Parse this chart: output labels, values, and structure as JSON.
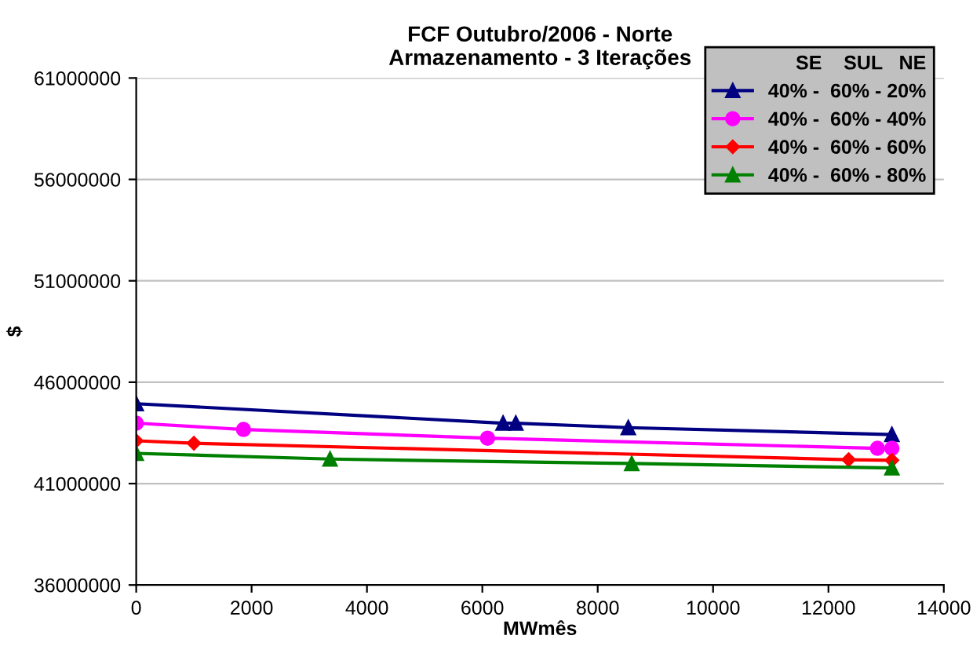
{
  "chart_data": {
    "type": "line",
    "title": "FCF Outubro/2006 - Norte\nArmazenamento - 3 Iterações",
    "xlabel": "MWmês",
    "ylabel": "$",
    "xlim": [
      0,
      14000
    ],
    "xticks": [
      0,
      2000,
      4000,
      6000,
      8000,
      10000,
      12000,
      14000
    ],
    "ylim": [
      36000000,
      61000000
    ],
    "yticks": [
      36000000,
      41000000,
      46000000,
      51000000,
      56000000,
      61000000
    ],
    "grid": "y",
    "legend": "top right",
    "legend_title": "SE    SUL   NE",
    "series": [
      {
        "name": "40% -  60% - 20%",
        "color": "#000080",
        "marker": "triangle",
        "x": [
          0,
          6360,
          6580,
          8530,
          13100
        ],
        "values": [
          44940000,
          43980000,
          43980000,
          43760000,
          43420000
        ]
      },
      {
        "name": "40% -  60% - 40%",
        "color": "#ff00ff",
        "marker": "circle",
        "x": [
          0,
          1860,
          6090,
          12850,
          13100
        ],
        "values": [
          43980000,
          43670000,
          43240000,
          42740000,
          42740000
        ]
      },
      {
        "name": "40% -  60% - 60%",
        "color": "#ff0000",
        "marker": "diamond",
        "x": [
          0,
          1000,
          12350,
          13100
        ],
        "values": [
          43110000,
          42990000,
          42180000,
          42150000
        ]
      },
      {
        "name": "40% -  60% - 80%",
        "color": "#008000",
        "marker": "triangle",
        "x": [
          0,
          3360,
          8590,
          13100
        ],
        "values": [
          42490000,
          42210000,
          41990000,
          41770000
        ]
      }
    ]
  }
}
